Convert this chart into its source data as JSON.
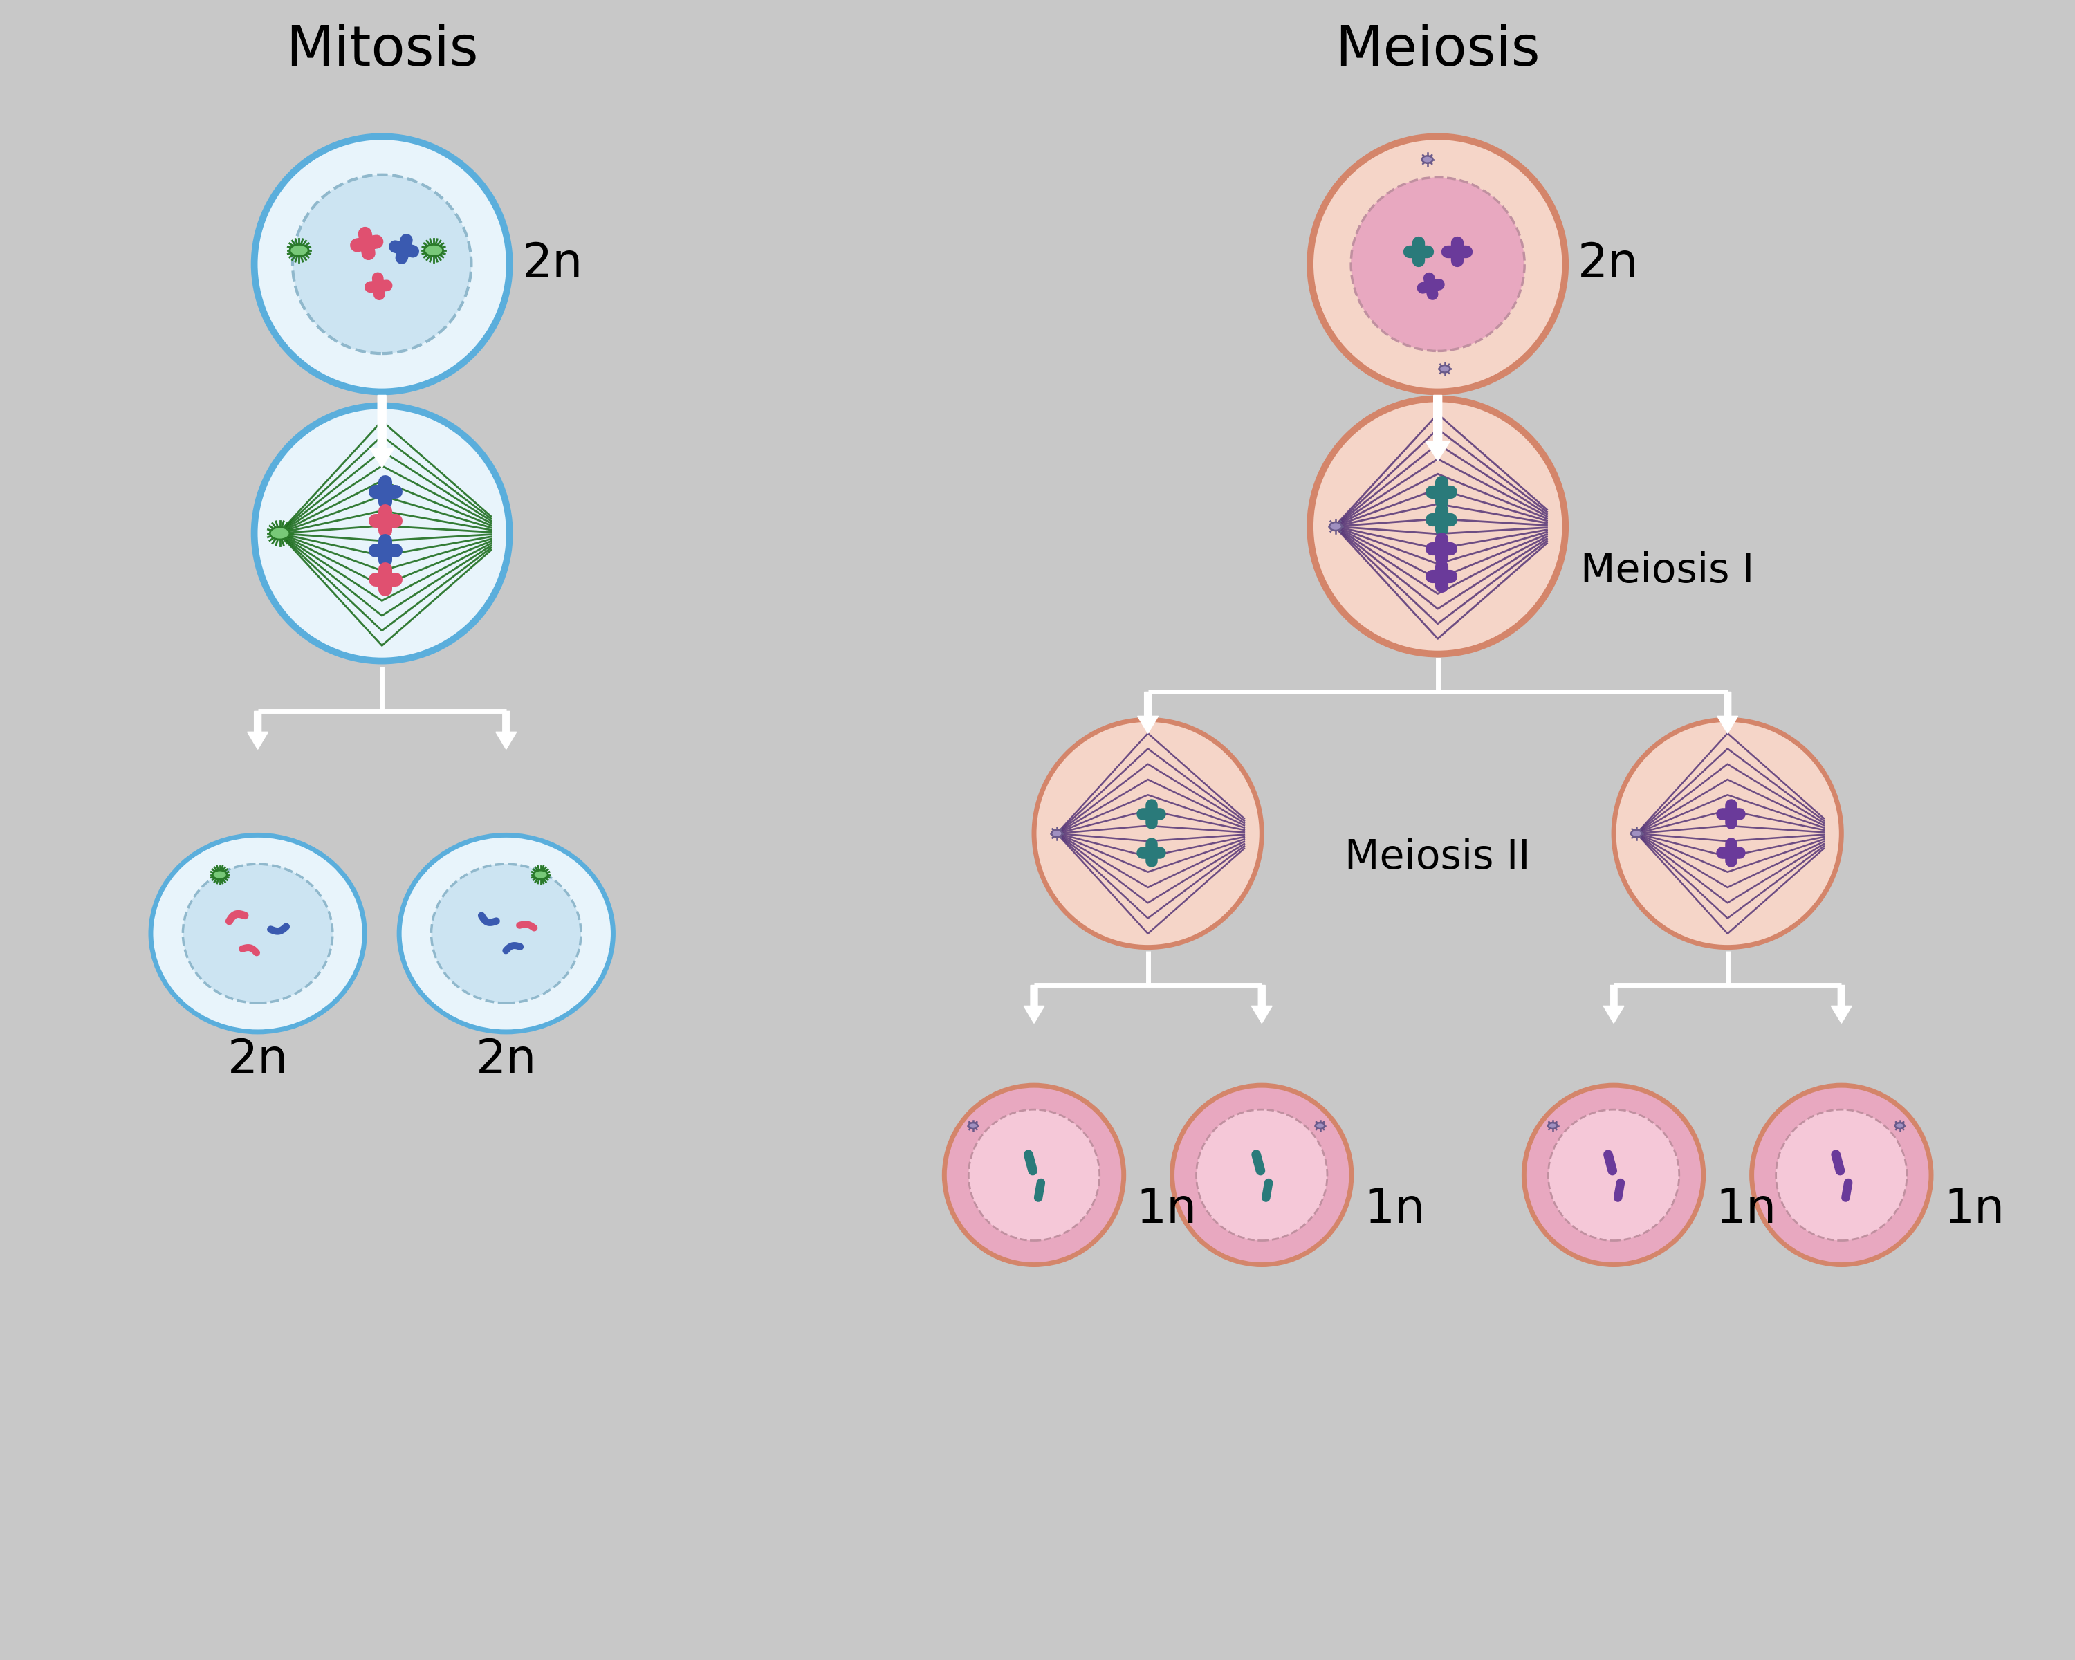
{
  "bg_color": "#c8c8c8",
  "title_mitosis": "Mitosis",
  "title_meiosis": "Meiosis",
  "label_meiosis_I": "Meiosis I",
  "label_meiosis_II": "Meiosis II",
  "label_2n": "2n",
  "label_1n": "1n",
  "mitosis_cell_color": "#e8f4fb",
  "mitosis_border_color": "#5aaedc",
  "mitosis_nucleus_color": "#cce4f2",
  "meiosis_cell_color": "#f5d5c8",
  "meiosis_border_color": "#d4856a",
  "meiosis_nucleus_color": "#e8a8c0",
  "spindle_green": "#1a6b1a",
  "spindle_purple": "#5a3a7a",
  "chr_red": "#e05070",
  "chr_blue": "#3a5ab0",
  "chr_purple": "#6a3a9a",
  "chr_teal": "#2a7a7a",
  "arrow_white": "#ffffff",
  "centriole_green": "#2a7a2a",
  "centriole_green_body": "#78c878",
  "centriole_purple": "#6a5a8a",
  "centriole_purple_body": "#a090c0",
  "title_fontsize": 58,
  "label_fontsize": 42,
  "ploidy_fontsize": 50,
  "border_lw_large": 7,
  "border_lw_small": 5
}
